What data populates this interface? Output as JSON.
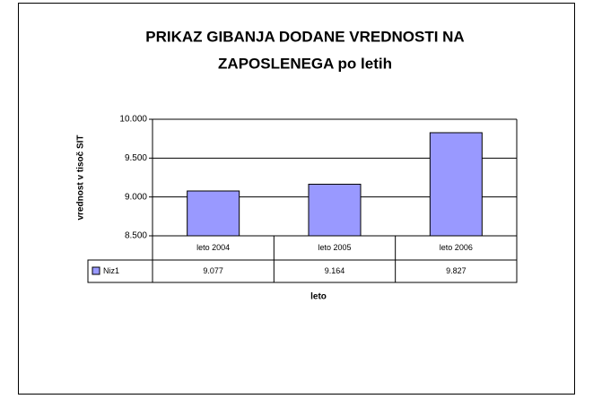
{
  "chart_data": {
    "type": "bar",
    "title": [
      "PRIKAZ GIBANJA DODANE VREDNOSTI NA",
      "ZAPOSLENEGA po letih"
    ],
    "y_label": "vrednost v tisoč SIT",
    "x_label": "leto",
    "categories": [
      "leto 2004",
      "leto 2005",
      "leto 2006"
    ],
    "series": [
      {
        "name": "Niz1",
        "color": "#9999ff",
        "values": [
          9077,
          9164,
          9827
        ],
        "value_labels": [
          "9.077",
          "9.164",
          "9.827"
        ]
      }
    ],
    "ylim": [
      8500,
      10000
    ],
    "yticks": [
      {
        "value": 8500,
        "label": "8.500"
      },
      {
        "value": 9000,
        "label": "9.000"
      },
      {
        "value": 9500,
        "label": "9.500"
      },
      {
        "value": 10000,
        "label": "10.000"
      }
    ],
    "grid": true
  }
}
